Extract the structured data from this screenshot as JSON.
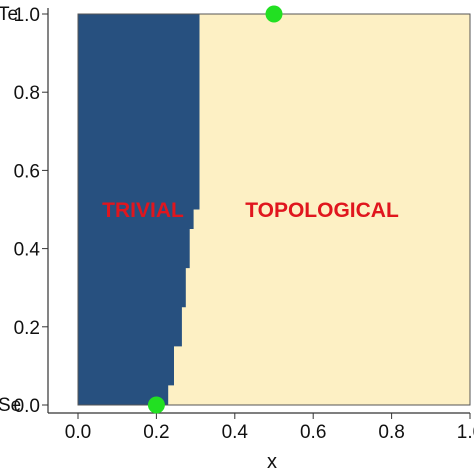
{
  "chart_data": {
    "type": "heatmap",
    "title": "",
    "xlabel": "x",
    "ylabel": "",
    "xlim": [
      0.0,
      1.0
    ],
    "ylim": [
      0.0,
      1.0
    ],
    "x_ticks": [
      "0.0",
      "0.2",
      "0.4",
      "0.6",
      "0.8",
      "1.0"
    ],
    "y_ticks": [
      "0.0",
      "0.2",
      "0.4",
      "0.6",
      "0.8",
      "1.0"
    ],
    "y_end_labels": {
      "bottom": "Se",
      "top": "Te"
    },
    "grid": false,
    "regions": [
      {
        "name": "TRIVIAL",
        "color": "#27507f"
      },
      {
        "name": "TOPOLOGICAL",
        "color": "#fdf0c4"
      }
    ],
    "region_label_color": "#e0161e",
    "phase_boundary": {
      "y": [
        0.0,
        0.025,
        0.05,
        0.075,
        0.1,
        0.125,
        0.15,
        0.175,
        0.2,
        0.225,
        0.25,
        0.275,
        0.3,
        0.325,
        0.35,
        0.375,
        0.4,
        0.425,
        0.45,
        0.475,
        0.5,
        0.525,
        0.55,
        0.575,
        0.6,
        0.625,
        0.65,
        0.675,
        0.7,
        0.725,
        0.75,
        0.775,
        0.8,
        0.825,
        0.85,
        0.875,
        0.9,
        0.925,
        0.95,
        0.975
      ],
      "x": [
        0.23,
        0.23,
        0.245,
        0.245,
        0.245,
        0.245,
        0.265,
        0.265,
        0.265,
        0.265,
        0.275,
        0.275,
        0.275,
        0.275,
        0.285,
        0.285,
        0.285,
        0.285,
        0.295,
        0.295,
        0.31,
        0.31,
        0.31,
        0.31,
        0.31,
        0.31,
        0.31,
        0.31,
        0.31,
        0.31,
        0.31,
        0.31,
        0.31,
        0.31,
        0.31,
        0.31,
        0.31,
        0.31,
        0.31,
        0.31
      ]
    },
    "points": [
      {
        "x": 0.2,
        "y": 0.0,
        "color": "#22e022"
      },
      {
        "x": 0.5,
        "y": 1.0,
        "color": "#22e022"
      }
    ]
  }
}
